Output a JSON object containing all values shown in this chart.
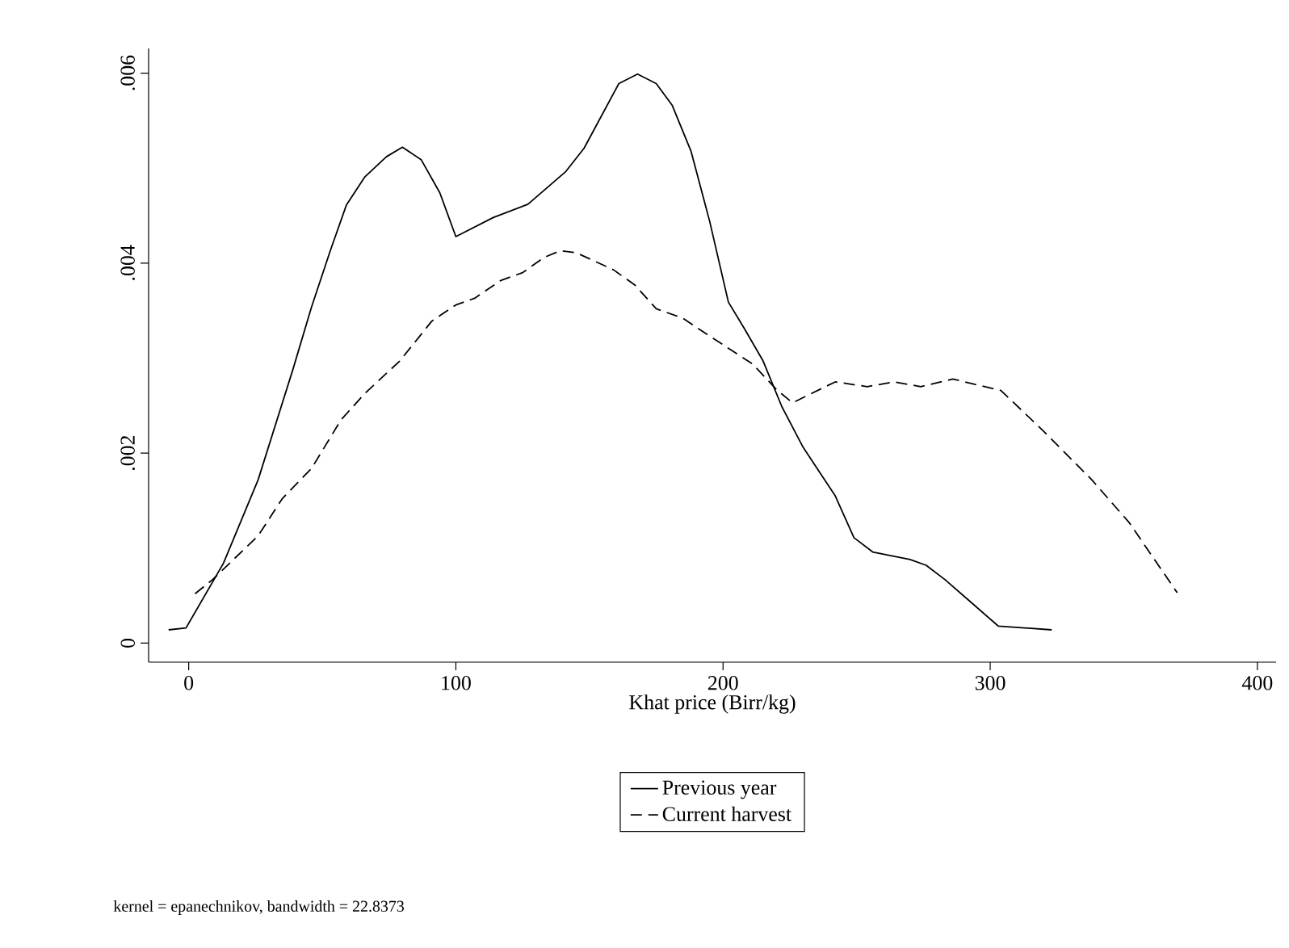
{
  "chart_data": {
    "type": "line",
    "xlabel": "Khat price (Birr/kg)",
    "annotations": [
      "kernel = epanechnikov, bandwidth = 22.8373"
    ],
    "xlim": [
      -15,
      407
    ],
    "ylim": [
      -0.0002,
      0.00626
    ],
    "xticks": [
      0,
      100,
      200,
      300,
      400
    ],
    "yticks": [
      0,
      {
        "value": 0.002,
        "label": ".002"
      },
      {
        "value": 0.004,
        "label": ".004"
      },
      {
        "value": 0.006,
        "label": ".006"
      }
    ],
    "legend": "bottom",
    "grid": false,
    "series": [
      {
        "name": "Previous year",
        "color": "#000000",
        "line_style": "solid",
        "x": [
          -7.5,
          -1,
          13,
          26,
          39,
          46,
          53,
          59,
          66,
          74,
          80,
          87,
          94,
          100,
          114,
          127,
          141,
          148,
          161,
          168,
          175,
          181,
          188,
          195,
          202,
          208,
          215,
          222,
          230,
          242,
          249,
          256,
          270,
          276,
          283,
          292,
          303,
          323
        ],
        "values": [
          0.00014,
          0.00016,
          0.00084,
          0.00172,
          0.00288,
          0.00354,
          0.00413,
          0.00461,
          0.00491,
          0.00512,
          0.00522,
          0.00509,
          0.00474,
          0.00428,
          0.00448,
          0.00462,
          0.00496,
          0.00521,
          0.00589,
          0.00599,
          0.00589,
          0.00566,
          0.00518,
          0.00444,
          0.00359,
          0.00331,
          0.00297,
          0.00249,
          0.00206,
          0.00155,
          0.00111,
          0.00096,
          0.00088,
          0.00082,
          0.00067,
          0.00045,
          0.00018,
          0.00014
        ]
      },
      {
        "name": "Current harvest",
        "color": "#000000",
        "line_style": "dashed",
        "x": [
          2.4,
          9,
          26,
          35,
          46,
          57,
          66,
          79,
          91,
          100,
          107,
          117,
          125,
          133,
          139,
          145,
          159,
          167,
          175,
          185,
          194,
          211,
          220,
          226,
          242,
          254,
          264,
          274,
          286,
          304,
          320,
          338,
          352,
          370
        ],
        "values": [
          0.00052,
          0.00067,
          0.00113,
          0.00152,
          0.00184,
          0.00235,
          0.00263,
          0.00297,
          0.00339,
          0.00356,
          0.00363,
          0.00382,
          0.0039,
          0.00406,
          0.00413,
          0.00411,
          0.00393,
          0.00377,
          0.00352,
          0.00342,
          0.00325,
          0.00294,
          0.00267,
          0.00253,
          0.00275,
          0.0027,
          0.00275,
          0.0027,
          0.00278,
          0.00266,
          0.00223,
          0.00172,
          0.00127,
          0.00053
        ]
      }
    ]
  }
}
